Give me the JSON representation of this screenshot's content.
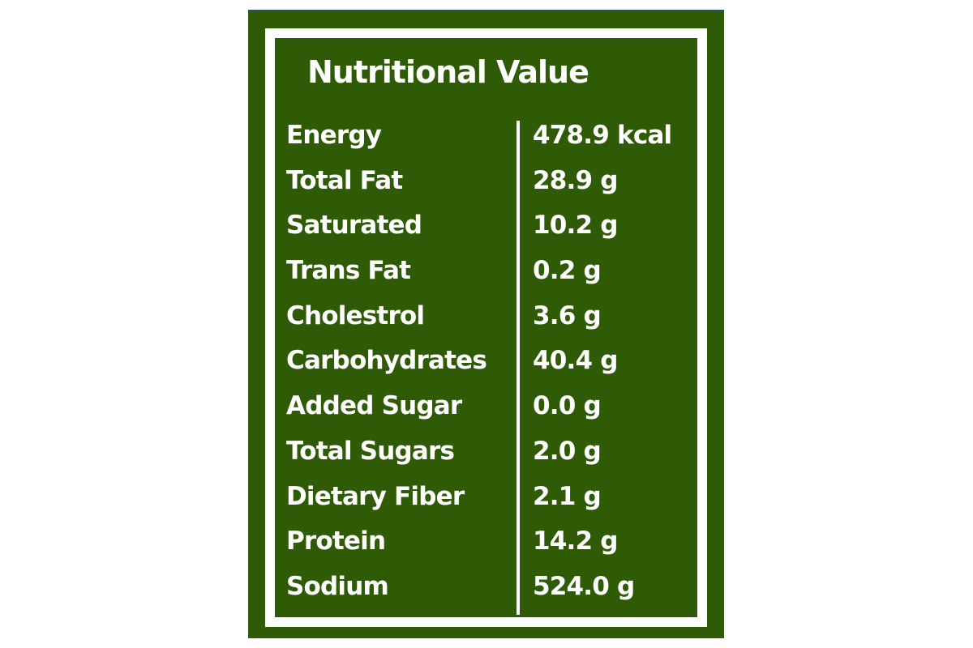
{
  "title": "Nutritional Value",
  "colors": {
    "background": "#2f5b06",
    "border": "#ffffff",
    "text": "#ffffff"
  },
  "rows": [
    {
      "label": "Energy",
      "value": "478.9 kcal"
    },
    {
      "label": "Total Fat",
      "value": "28.9 g"
    },
    {
      "label": "Saturated",
      "value": "10.2 g"
    },
    {
      "label": "Trans Fat",
      "value": "0.2 g"
    },
    {
      "label": "Cholestrol",
      "value": "3.6 g"
    },
    {
      "label": "Carbohydrates",
      "value": "40.4 g"
    },
    {
      "label": "Added Sugar",
      "value": "0.0 g"
    },
    {
      "label": "Total Sugars",
      "value": "2.0 g"
    },
    {
      "label": "Dietary Fiber",
      "value": "2.1 g"
    },
    {
      "label": "Protein",
      "value": "14.2 g"
    },
    {
      "label": "Sodium",
      "value": "524.0 g"
    }
  ]
}
